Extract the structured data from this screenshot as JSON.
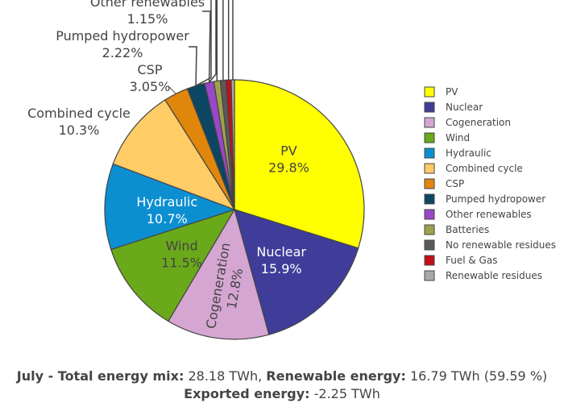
{
  "chart_data": {
    "type": "pie",
    "labels": [
      "PV",
      "Nuclear",
      "Cogeneration",
      "Wind",
      "Hydraulic",
      "Combined cycle",
      "CSP",
      "Pumped hydropower",
      "Other renewables",
      "Batteries",
      "No renewable residues",
      "Fuel & Gas",
      "Renewable residues"
    ],
    "values": [
      29.8,
      15.9,
      12.8,
      11.5,
      10.7,
      10.3,
      3.05,
      2.22,
      1.15,
      0.8,
      0.7,
      0.65,
      0.4
    ],
    "display_pct": [
      "29.8%",
      "15.9%",
      "12.8%",
      "11.5%",
      "10.7%",
      "10.3%",
      "3.05%",
      "2.22%",
      "1.15%",
      "",
      "",
      "",
      ""
    ],
    "colors": [
      "#ffff00",
      "#3f3d99",
      "#d4a6d1",
      "#6aa919",
      "#0c8fd1",
      "#ffcc66",
      "#e0860b",
      "#0d4663",
      "#9a47c8",
      "#a0a04a",
      "#5a5a5a",
      "#c20f1a",
      "#a8a8a8"
    ],
    "text_colors": [
      "#444444",
      "#ffffff",
      "#444444",
      "#444444",
      "#ffffff",
      "#444444"
    ],
    "legend": {
      "placement": "right"
    }
  },
  "footer": {
    "line1": [
      {
        "text": "July - Total energy mix:",
        "bold": true
      },
      {
        "text": " 28.18 TWh, ",
        "bold": false
      },
      {
        "text": "Renewable energy:",
        "bold": true
      },
      {
        "text": " 16.79 TWh (59.59 %)",
        "bold": false
      }
    ],
    "line2": [
      {
        "text": "Exported energy:",
        "bold": true
      },
      {
        "text": " -2.25 TWh",
        "bold": false
      }
    ]
  }
}
